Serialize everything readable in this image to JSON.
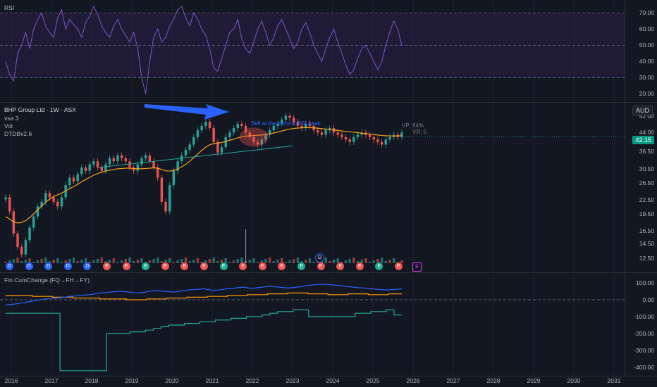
{
  "rsi": {
    "title": "RSI",
    "ticks": [
      "70.00",
      "60.00",
      "50.00",
      "40.00",
      "30.00",
      "20.00"
    ],
    "values": [
      40,
      32,
      28,
      45,
      50,
      58,
      48,
      60,
      66,
      70,
      62,
      58,
      55,
      67,
      72,
      60,
      66,
      63,
      60,
      55,
      64,
      68,
      74,
      69,
      62,
      58,
      55,
      62,
      66,
      60,
      56,
      52,
      58,
      48,
      30,
      20,
      40,
      55,
      60,
      52,
      55,
      62,
      66,
      72,
      74,
      67,
      62,
      70,
      66,
      60,
      56,
      48,
      36,
      34,
      42,
      50,
      58,
      60,
      66,
      54,
      48,
      45,
      52,
      60,
      65,
      58,
      50,
      55,
      62,
      66,
      60,
      54,
      48,
      52,
      60,
      64,
      58,
      50,
      45,
      40,
      48,
      55,
      60,
      52,
      45,
      38,
      32,
      35,
      42,
      48,
      50,
      45,
      40,
      35,
      40,
      50,
      58,
      65,
      60,
      50
    ]
  },
  "price": {
    "title": "BHP Group Ltd · 1W · ASX",
    "indicators": [
      "vsa 3",
      "Vol",
      "DTDBv2.6"
    ],
    "currency": "AUD",
    "current_price": "42.15",
    "ticks": [
      "52.00",
      "44.00",
      "36.50",
      "30.50",
      "26.50",
      "22.50",
      "19.50",
      "16.50",
      "14.50",
      "12.50"
    ],
    "annotation": "Sell at the second RSI peak",
    "vp_label": "VP: 84%",
    "vr_label": "VR: 5",
    "closes": [
      23,
      20,
      16,
      14,
      13,
      15,
      17,
      19,
      21,
      22,
      24,
      23,
      22,
      21,
      23,
      26,
      28,
      27,
      29,
      31,
      30,
      32,
      33,
      31,
      30,
      32,
      34,
      33,
      35,
      34,
      33,
      31,
      30,
      32,
      34,
      35,
      33,
      31,
      28,
      22,
      20,
      26,
      30,
      33,
      35,
      37,
      39,
      42,
      45,
      47,
      49,
      46,
      40,
      36,
      38,
      42,
      44,
      46,
      48,
      47,
      44,
      42,
      40,
      39,
      41,
      43,
      45,
      47,
      48,
      50,
      52,
      51,
      49,
      47,
      46,
      48,
      47,
      45,
      44,
      43,
      45,
      46,
      44,
      43,
      42,
      41,
      40,
      42,
      43,
      44,
      43,
      42,
      41,
      40,
      39,
      41,
      42,
      43,
      42,
      44
    ],
    "ma": [
      19,
      18.5,
      18,
      17.8,
      17.9,
      18.2,
      18.8,
      19.5,
      20.3,
      21.1,
      21.9,
      22.6,
      23.2,
      23.6,
      24,
      24.5,
      25.1,
      25.6,
      26.2,
      26.9,
      27.5,
      28.1,
      28.7,
      29.2,
      29.6,
      29.9,
      30.2,
      30.4,
      30.6,
      30.7,
      30.8,
      30.8,
      30.7,
      30.6,
      30.6,
      30.7,
      30.8,
      30.9,
      30.8,
      30.4,
      30,
      29.9,
      30.1,
      30.6,
      31.2,
      32,
      33,
      34.2,
      35.5,
      36.8,
      38,
      38.9,
      39.4,
      39.6,
      39.8,
      40.2,
      40.7,
      41.2,
      41.7,
      42.1,
      42.4,
      42.6,
      42.7,
      42.8,
      42.9,
      43.1,
      43.4,
      43.8,
      44.2,
      44.7,
      45.1,
      45.5,
      45.8,
      46,
      46.1,
      46.2,
      46.2,
      46.1,
      45.9,
      45.7,
      45.5,
      45.3,
      45.1,
      44.9,
      44.7,
      44.5,
      44.3,
      44.1,
      43.9,
      43.7,
      43.5,
      43.3,
      43.1,
      42.9,
      42.7,
      42.6,
      42.5,
      42.5,
      42.5,
      42.6
    ]
  },
  "earnings_markers": [
    "D",
    "D",
    "D",
    "D",
    "D",
    "E",
    "E",
    "E",
    "E",
    "E",
    "E",
    "E",
    "E",
    "E",
    "E",
    "E",
    "E",
    "E",
    "E",
    "E",
    "E"
  ],
  "future_marker": "E",
  "fin": {
    "title": "Fin CumChange (FQ→FH→FY)",
    "ticks": [
      "100.00",
      "0.00",
      "-100.00",
      "-200.00",
      "-300.00",
      "-400.00"
    ],
    "blue": [
      -30,
      -28,
      -25,
      -20,
      -15,
      -10,
      -5,
      0,
      5,
      8,
      10,
      12,
      15,
      20,
      22,
      25,
      28,
      30,
      35,
      40,
      42,
      45,
      48,
      50,
      48,
      45,
      42,
      40,
      45,
      50,
      55,
      52,
      50,
      48,
      45,
      50,
      55,
      58,
      60,
      62,
      65,
      60,
      55,
      58,
      62,
      65,
      68,
      72,
      75,
      70,
      68,
      72,
      75,
      80,
      78,
      75,
      72,
      70,
      72,
      75,
      80,
      85,
      88,
      90,
      92,
      90,
      88,
      85,
      82,
      78,
      75,
      72,
      70,
      68,
      65,
      62,
      60,
      58,
      60,
      62,
      65
    ],
    "orange": [
      25,
      25,
      25,
      25,
      20,
      20,
      20,
      15,
      15,
      15,
      10,
      10,
      10,
      10,
      5,
      5,
      5,
      5,
      0,
      0,
      0,
      5,
      5,
      5,
      10,
      10,
      10,
      15,
      15,
      15,
      20,
      20,
      20,
      25,
      25,
      25,
      30,
      30,
      30,
      35,
      35,
      35,
      40,
      40,
      40,
      35,
      35,
      35,
      30,
      30,
      30,
      35,
      35,
      35,
      30,
      30,
      30,
      35,
      35,
      35
    ],
    "green": [
      -80,
      -80,
      -80,
      -80,
      -80,
      -80,
      -80,
      -420,
      -420,
      -420,
      -420,
      -420,
      -420,
      -200,
      -200,
      -200,
      -190,
      -190,
      -180,
      -170,
      -160,
      -150,
      -150,
      -140,
      -140,
      -130,
      -130,
      -120,
      -120,
      -110,
      -110,
      -100,
      -100,
      -90,
      -80,
      -70,
      -70,
      -60,
      -60,
      -100,
      -100,
      -100,
      -100,
      -100,
      -100,
      -80,
      -80,
      -70,
      -70,
      -60,
      -90,
      -90
    ]
  },
  "years": [
    "2016",
    "2017",
    "2018",
    "2019",
    "2020",
    "2021",
    "2022",
    "2023",
    "2024",
    "2025",
    "2026",
    "2027",
    "2028",
    "2029",
    "2030",
    "2031"
  ],
  "colors": {
    "background": "#131722",
    "rsi_line": "#7e57c2",
    "rsi_band": "#2a1f48",
    "ma_line": "#f7a21b",
    "candle_up": "#26a69a",
    "candle_down": "#ef5350",
    "fin_blue": "#2962ff",
    "fin_orange": "#ff9800",
    "fin_green": "#22ab94",
    "arrow": "#2962ff",
    "price_badge": "#089981"
  }
}
